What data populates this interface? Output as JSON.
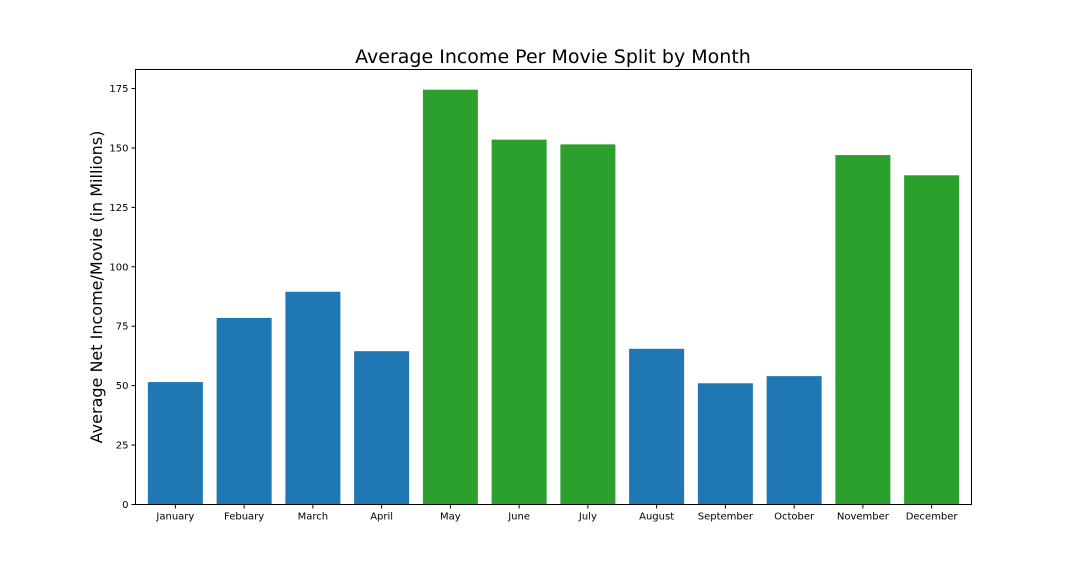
{
  "colors": {
    "low_season": "#1f77b4",
    "peak_season": "#2ca02c"
  },
  "chart_data": {
    "type": "bar",
    "title": "Average Income Per Movie Split by Month",
    "xlabel": "",
    "ylabel": "Average Net Income/Movie (in Millions)",
    "ylim": [
      0,
      183
    ],
    "yticks": [
      0,
      25,
      50,
      75,
      100,
      125,
      150,
      175
    ],
    "grid": false,
    "legend": "none",
    "categories": [
      "January",
      "Febuary",
      "March",
      "April",
      "May",
      "June",
      "July",
      "August",
      "September",
      "October",
      "November",
      "December"
    ],
    "values": [
      51.5,
      78.5,
      89.5,
      64.5,
      174.5,
      153.5,
      151.5,
      65.5,
      51,
      54,
      147,
      138.5
    ],
    "bar_colors": [
      "#1f77b4",
      "#1f77b4",
      "#1f77b4",
      "#1f77b4",
      "#2ca02c",
      "#2ca02c",
      "#2ca02c",
      "#1f77b4",
      "#1f77b4",
      "#1f77b4",
      "#2ca02c",
      "#2ca02c"
    ]
  }
}
